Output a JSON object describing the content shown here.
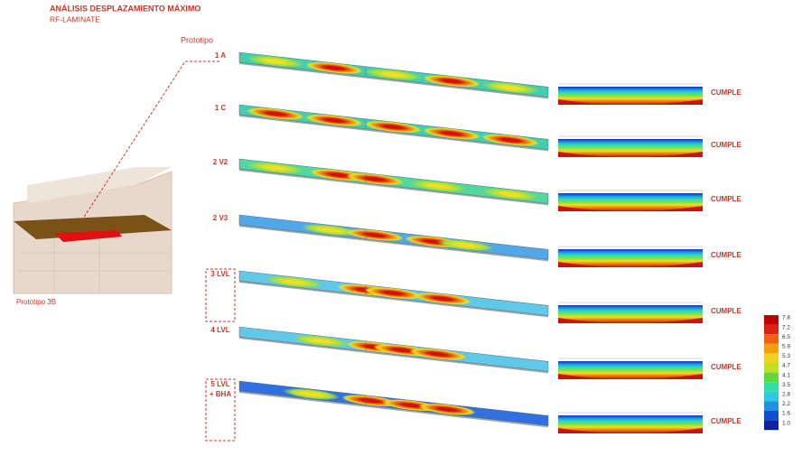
{
  "header": {
    "title": "ANÁLISIS DESPLAZAMIENTO MÁXIMO",
    "subtitle": "RF-LAMINATE"
  },
  "prototype_label": "Prototipo",
  "building_label": "Prototipo 3B",
  "rows": [
    {
      "label_lines": [
        "1 A"
      ],
      "status": "CUMPLE"
    },
    {
      "label_lines": [
        "1 C"
      ],
      "status": "CUMPLE"
    },
    {
      "label_lines": [
        "2 V2"
      ],
      "status": "CUMPLE"
    },
    {
      "label_lines": [
        "2 V3"
      ],
      "status": "CUMPLE"
    },
    {
      "label_lines": [
        "3 LVL"
      ],
      "status": "CUMPLE"
    },
    {
      "label_lines": [
        "4 LVL"
      ],
      "status": "CUMPLE"
    },
    {
      "label_lines": [
        "5 LVL",
        "+ BHA"
      ],
      "status": "CUMPLE"
    }
  ],
  "legend": {
    "labels": [
      "7.8",
      "7.2",
      "6.5",
      "5.9",
      "5.3",
      "4.7",
      "4.1",
      "3.5",
      "2.8",
      "2.2",
      "1.6",
      "1.0"
    ]
  }
}
